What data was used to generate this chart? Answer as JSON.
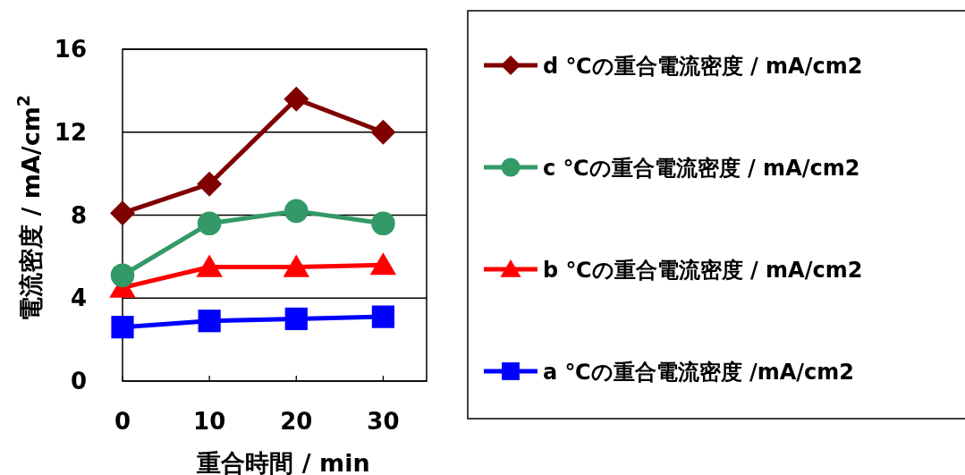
{
  "chart_data": {
    "type": "line",
    "xlabel": "重合時間 / min",
    "ylabel": "電流密度 / mA/cm$^{2}$",
    "x": [
      0,
      10,
      20,
      30
    ],
    "xlim": [
      0,
      35
    ],
    "xticks": [
      0,
      10,
      20,
      30
    ],
    "ylim": [
      0,
      16
    ],
    "yticks": [
      0,
      4,
      8,
      12,
      16
    ],
    "grid": "y",
    "legend": "right",
    "series": [
      {
        "name": "d ℃の重合電流密度 / mA/cm2",
        "color": "#800000",
        "marker": "diamond",
        "values": [
          8.1,
          9.5,
          13.6,
          12.0
        ]
      },
      {
        "name": "c ℃の重合電流密度 / mA/cm2",
        "color": "#339966",
        "marker": "circle",
        "values": [
          5.1,
          7.6,
          8.2,
          7.6
        ]
      },
      {
        "name": "b ℃の重合電流密度 / mA/cm2",
        "color": "#ff0000",
        "marker": "triangle",
        "values": [
          4.5,
          5.5,
          5.5,
          5.6
        ]
      },
      {
        "name": "a ℃の重合電流密度 /mA/cm2",
        "color": "#0000ff",
        "marker": "square",
        "values": [
          2.6,
          2.9,
          3.0,
          3.1
        ]
      }
    ]
  }
}
